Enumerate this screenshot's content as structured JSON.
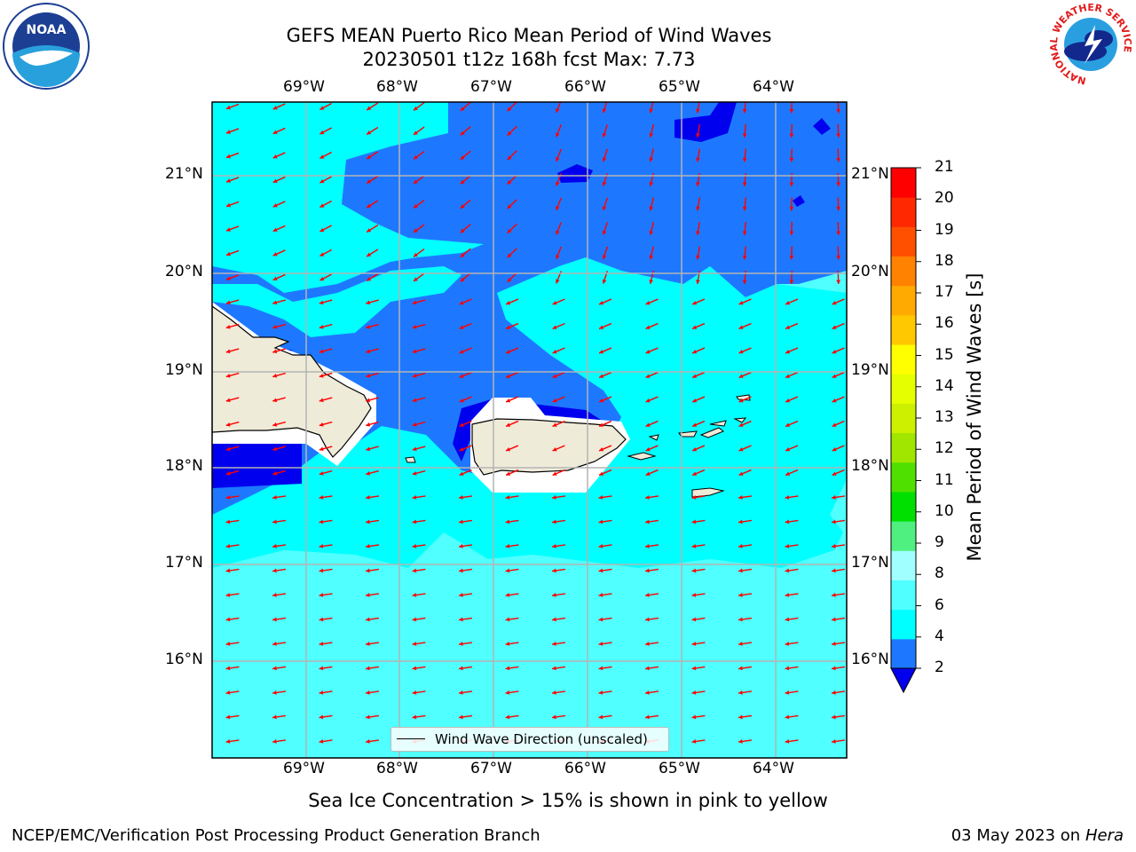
{
  "header": {
    "title_line1": "GEFS MEAN Puerto Rico Mean Period of Wind Waves",
    "title_line2": "20230501 t12z 168h fcst   Max: 7.73"
  },
  "logos": {
    "left": "NOAA",
    "right_ring_text": "NATIONAL WEATHER SERVICE"
  },
  "map": {
    "lon_labels": [
      "69°W",
      "68°W",
      "67°W",
      "66°W",
      "65°W",
      "64°W"
    ],
    "lat_labels": [
      "21°N",
      "20°N",
      "19°N",
      "18°N",
      "17°N",
      "16°N"
    ],
    "legend_label": "Wind Wave Direction (unscaled)",
    "arrow_color": "#ff0000",
    "land_color": "#efebd9",
    "lon_range": [
      -70,
      -63.3
    ],
    "lat_range": [
      15,
      21.7
    ]
  },
  "colorbar": {
    "label": "Mean Period of Wind Waves [s]",
    "tick_labels": [
      "2",
      "4",
      "6",
      "8",
      "9",
      "10",
      "11",
      "12",
      "13",
      "14",
      "15",
      "16",
      "17",
      "18",
      "19",
      "20",
      "21"
    ],
    "colors": [
      "#0000ee",
      "#1e78ff",
      "#00ffff",
      "#50ffff",
      "#a0ffff",
      "#50f080",
      "#00e000",
      "#50e000",
      "#a0e600",
      "#ccf000",
      "#e6ff00",
      "#ffff00",
      "#ffc800",
      "#ffaa00",
      "#ff8200",
      "#ff5000",
      "#ff2800",
      "#ff0000"
    ]
  },
  "subtitle": "Sea Ice Concentration > 15% is shown in pink to yellow",
  "footer": {
    "left": "NCEP/EMC/Verification Post Processing Product Generation Branch",
    "right_date": "03 May 2023 on",
    "right_host": "Hera"
  }
}
